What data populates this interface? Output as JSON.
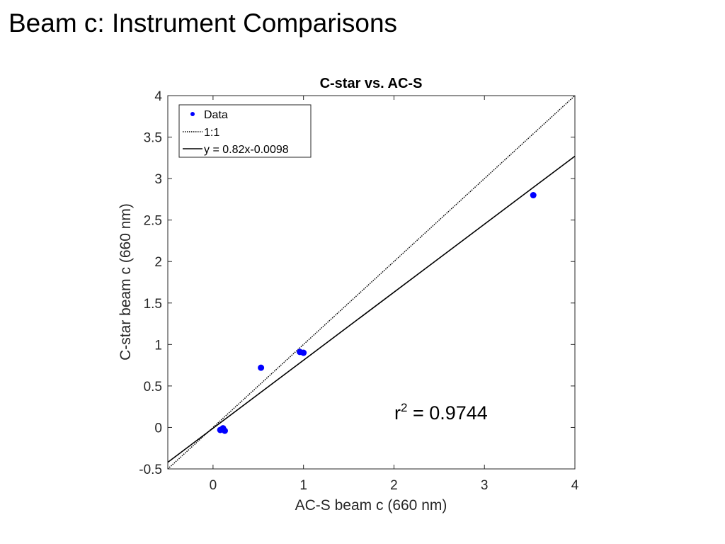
{
  "slide": {
    "title": "Beam c: Instrument Comparisons"
  },
  "annotation": {
    "r_symbol": "r",
    "r_exponent": "2",
    "r_value_text": " = 0.9744"
  },
  "chart_data": {
    "type": "scatter",
    "title": "C-star vs. AC-S",
    "xlabel": "AC-S beam c (660 nm)",
    "ylabel": "C-star beam c (660 nm)",
    "xlim": [
      -0.5,
      4
    ],
    "ylim": [
      -0.5,
      4
    ],
    "xticks": [
      0,
      1,
      2,
      3,
      4
    ],
    "yticks": [
      -0.5,
      0,
      0.5,
      1,
      1.5,
      2,
      2.5,
      3,
      3.5,
      4
    ],
    "xtick_labels": [
      "0",
      "1",
      "2",
      "3",
      "4"
    ],
    "ytick_labels": [
      "-0.5",
      "0",
      "0.5",
      "1",
      "1.5",
      "2",
      "2.5",
      "3",
      "3.5",
      "4"
    ],
    "grid": false,
    "legend_position": "top-left",
    "series": [
      {
        "name": "Data",
        "kind": "points",
        "color": "#0000ff",
        "x": [
          0.08,
          0.11,
          0.13,
          0.53,
          0.96,
          1.0,
          3.54
        ],
        "y": [
          -0.03,
          -0.01,
          -0.04,
          0.72,
          0.91,
          0.9,
          2.8
        ]
      },
      {
        "name": "1:1",
        "kind": "line",
        "style": "dotted",
        "color": "#000000",
        "slope": 1,
        "intercept": 0
      },
      {
        "name": "y = 0.82x-0.0098",
        "kind": "line",
        "style": "solid",
        "color": "#000000",
        "slope": 0.82,
        "intercept": -0.0098
      }
    ]
  }
}
